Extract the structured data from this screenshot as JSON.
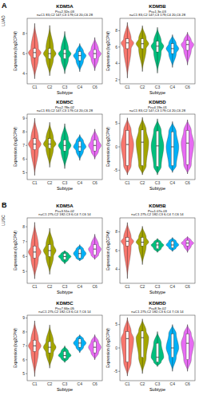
{
  "panels": [
    {
      "label": "A",
      "name": "LUAD"
    },
    {
      "label": "B",
      "name": "LUSC"
    }
  ],
  "chart_data": [
    {
      "type": "violin",
      "title": "KDM5A",
      "subtitle": "Pv=2.32e-03",
      "annotation": "n=C1 83,C2 147,C3 179,C4 20,C6 28",
      "x_label": "Subtype",
      "y_label": "Expression (log2CPM)",
      "categories": [
        "C1",
        "C2",
        "C3",
        "C4",
        "C6"
      ],
      "colors": [
        "#F8766D",
        "#A3A500",
        "#00BF7D",
        "#00B0F6",
        "#E76BF3"
      ],
      "min": [
        3.5,
        3.8,
        4.0,
        4.2,
        4.3
      ],
      "q1": [
        5.6,
        5.5,
        5.5,
        5.3,
        5.5
      ],
      "median": [
        6.1,
        6.0,
        6.0,
        5.8,
        6.0
      ],
      "q3": [
        6.5,
        6.5,
        6.4,
        6.2,
        6.4
      ],
      "max": [
        9.0,
        8.8,
        8.2,
        7.0,
        7.6
      ],
      "ylim": [
        3,
        9.5
      ],
      "yticks": [
        4,
        6,
        8
      ]
    },
    {
      "type": "violin",
      "title": "KDM5B",
      "subtitle": "Pv=1.3e-03",
      "annotation": "n=C1 83,C2 147,C3 179,C4 20,C6 28",
      "x_label": "Subtype",
      "y_label": "Expression (log2CPM)",
      "categories": [
        "C1",
        "C2",
        "C3",
        "C4",
        "C6"
      ],
      "colors": [
        "#F8766D",
        "#A3A500",
        "#00BF7D",
        "#00B0F6",
        "#E76BF3"
      ],
      "min": [
        2.2,
        3.0,
        2.8,
        3.5,
        3.8
      ],
      "q1": [
        5.8,
        5.8,
        5.4,
        5.2,
        5.6
      ],
      "median": [
        6.5,
        6.4,
        6.1,
        5.8,
        6.3
      ],
      "q3": [
        7.0,
        7.0,
        6.7,
        6.4,
        6.8
      ],
      "max": [
        9.0,
        8.6,
        8.4,
        7.5,
        7.8
      ],
      "ylim": [
        1.5,
        9.5
      ],
      "yticks": [
        2,
        4,
        6,
        8
      ]
    },
    {
      "type": "violin",
      "title": "KDM5C",
      "subtitle": "Pv=2.78e-02",
      "annotation": "n=C1 83,C2 147,C3 179,C4 20,C6 28",
      "x_label": "Subtype",
      "y_label": "Expression (log2CPM)",
      "categories": [
        "C1",
        "C2",
        "C3",
        "C4",
        "C6"
      ],
      "colors": [
        "#F8766D",
        "#A3A500",
        "#00BF7D",
        "#00B0F6",
        "#E76BF3"
      ],
      "min": [
        4.8,
        5.4,
        5.3,
        5.9,
        6.0
      ],
      "q1": [
        6.7,
        6.8,
        6.6,
        6.6,
        6.6
      ],
      "median": [
        7.1,
        7.1,
        7.0,
        6.9,
        7.0
      ],
      "q3": [
        7.5,
        7.5,
        7.4,
        7.3,
        7.4
      ],
      "max": [
        9.0,
        8.7,
        8.6,
        7.8,
        8.2
      ],
      "ylim": [
        4.5,
        9.3
      ],
      "yticks": [
        5,
        6,
        7,
        8,
        9
      ]
    },
    {
      "type": "violin",
      "title": "KDM5D",
      "subtitle": "Pv=4.19e-01",
      "annotation": "n=C1 83,C2 147,C3 179,C4 20,C6 28",
      "x_label": "Subtype",
      "y_label": "Expression (log2CPM)",
      "categories": [
        "C1",
        "C2",
        "C3",
        "C4",
        "C6"
      ],
      "colors": [
        "#F8766D",
        "#A3A500",
        "#00BF7D",
        "#00B0F6",
        "#E76BF3"
      ],
      "min": [
        -6,
        -6,
        -6,
        -5.5,
        -5.8
      ],
      "q1": [
        -4,
        -4,
        -4.2,
        -4,
        -3.8
      ],
      "median": [
        0.5,
        1.0,
        0.2,
        0,
        0.8
      ],
      "q3": [
        3.5,
        3.6,
        3.4,
        3.2,
        3.5
      ],
      "max": [
        6.2,
        6.3,
        6.0,
        5.4,
        5.8
      ],
      "ylim": [
        -7,
        7
      ],
      "yticks": [
        -5,
        0,
        5
      ]
    },
    {
      "type": "violin",
      "title": "KDM5A",
      "subtitle": "Pv=3.51e-02",
      "annotation": "n=C1 275,C2 182,C3 6,C4 7,C6 14",
      "x_label": "Subtype",
      "y_label": "Expression (log2CPM)",
      "categories": [
        "C1",
        "C2",
        "C3",
        "C4",
        "C6"
      ],
      "colors": [
        "#F8766D",
        "#A3A500",
        "#00BF7D",
        "#00B0F6",
        "#E76BF3"
      ],
      "min": [
        4.5,
        4.8,
        5.5,
        5.7,
        5.8
      ],
      "q1": [
        5.9,
        6.0,
        5.8,
        5.9,
        6.1
      ],
      "median": [
        6.3,
        6.4,
        6.0,
        6.2,
        6.5
      ],
      "q3": [
        6.7,
        6.8,
        6.2,
        6.5,
        6.8
      ],
      "max": [
        8.3,
        7.9,
        6.4,
        6.8,
        7.5
      ],
      "ylim": [
        4.2,
        8.6
      ],
      "yticks": [
        5,
        6,
        7,
        8
      ]
    },
    {
      "type": "violin",
      "title": "KDM5B",
      "subtitle": "Pv=1.07e-03",
      "annotation": "n=C1 275,C2 182,C3 6,C4 7,C6 14",
      "x_label": "Subtype",
      "y_label": "Expression (log2CPM)",
      "categories": [
        "C1",
        "C2",
        "C3",
        "C4",
        "C6"
      ],
      "colors": [
        "#F8766D",
        "#A3A500",
        "#00BF7D",
        "#00B0F6",
        "#E76BF3"
      ],
      "min": [
        3.0,
        4.5,
        5.8,
        5.9,
        5.8
      ],
      "q1": [
        6.5,
        6.5,
        6.2,
        6.3,
        6.5
      ],
      "median": [
        7.0,
        6.9,
        6.6,
        6.6,
        6.8
      ],
      "q3": [
        7.4,
        7.4,
        6.9,
        7.0,
        7.1
      ],
      "max": [
        9.0,
        8.6,
        7.3,
        7.4,
        7.5
      ],
      "ylim": [
        2.5,
        9.5
      ],
      "yticks": [
        4,
        6,
        8
      ]
    },
    {
      "type": "violin",
      "title": "KDM5C",
      "subtitle": "Pv=7.66e-05",
      "annotation": "n=C1 275,C2 182,C3 6,C4 7,C6 14",
      "x_label": "Subtype",
      "y_label": "Expression (log2CPM)",
      "categories": [
        "C1",
        "C2",
        "C3",
        "C4",
        "C6"
      ],
      "colors": [
        "#F8766D",
        "#A3A500",
        "#00BF7D",
        "#00B0F6",
        "#E76BF3"
      ],
      "min": [
        4.8,
        5.4,
        5.8,
        6.5,
        6.0
      ],
      "q1": [
        6.6,
        6.5,
        6.1,
        6.9,
        6.5
      ],
      "median": [
        7.0,
        6.9,
        6.3,
        7.2,
        6.9
      ],
      "q3": [
        7.4,
        7.3,
        6.6,
        7.5,
        7.3
      ],
      "max": [
        8.8,
        8.5,
        7.0,
        7.8,
        7.8
      ],
      "ylim": [
        4.5,
        9.2
      ],
      "yticks": [
        5,
        6,
        7,
        8,
        9
      ]
    },
    {
      "type": "violin",
      "title": "KDM5D",
      "subtitle": "Pv=8.3e-02",
      "annotation": "n=C1 275,C2 182,C3 6,C4 7,C6 14",
      "x_label": "Subtype",
      "y_label": "Expression (log2CPM)",
      "categories": [
        "C1",
        "C2",
        "C3",
        "C4",
        "C6"
      ],
      "colors": [
        "#F8766D",
        "#A3A500",
        "#00BF7D",
        "#00B0F6",
        "#E76BF3"
      ],
      "min": [
        -6,
        -5.5,
        -4,
        -5,
        -5
      ],
      "q1": [
        -3,
        -2,
        -3,
        -2,
        -2.5
      ],
      "median": [
        2.0,
        2.2,
        -2.0,
        0,
        1.0
      ],
      "q3": [
        3.5,
        3.6,
        1,
        3,
        3
      ],
      "max": [
        6.5,
        6.2,
        3.5,
        5,
        5
      ],
      "ylim": [
        -7,
        7
      ],
      "yticks": [
        -5,
        0,
        5
      ]
    }
  ]
}
